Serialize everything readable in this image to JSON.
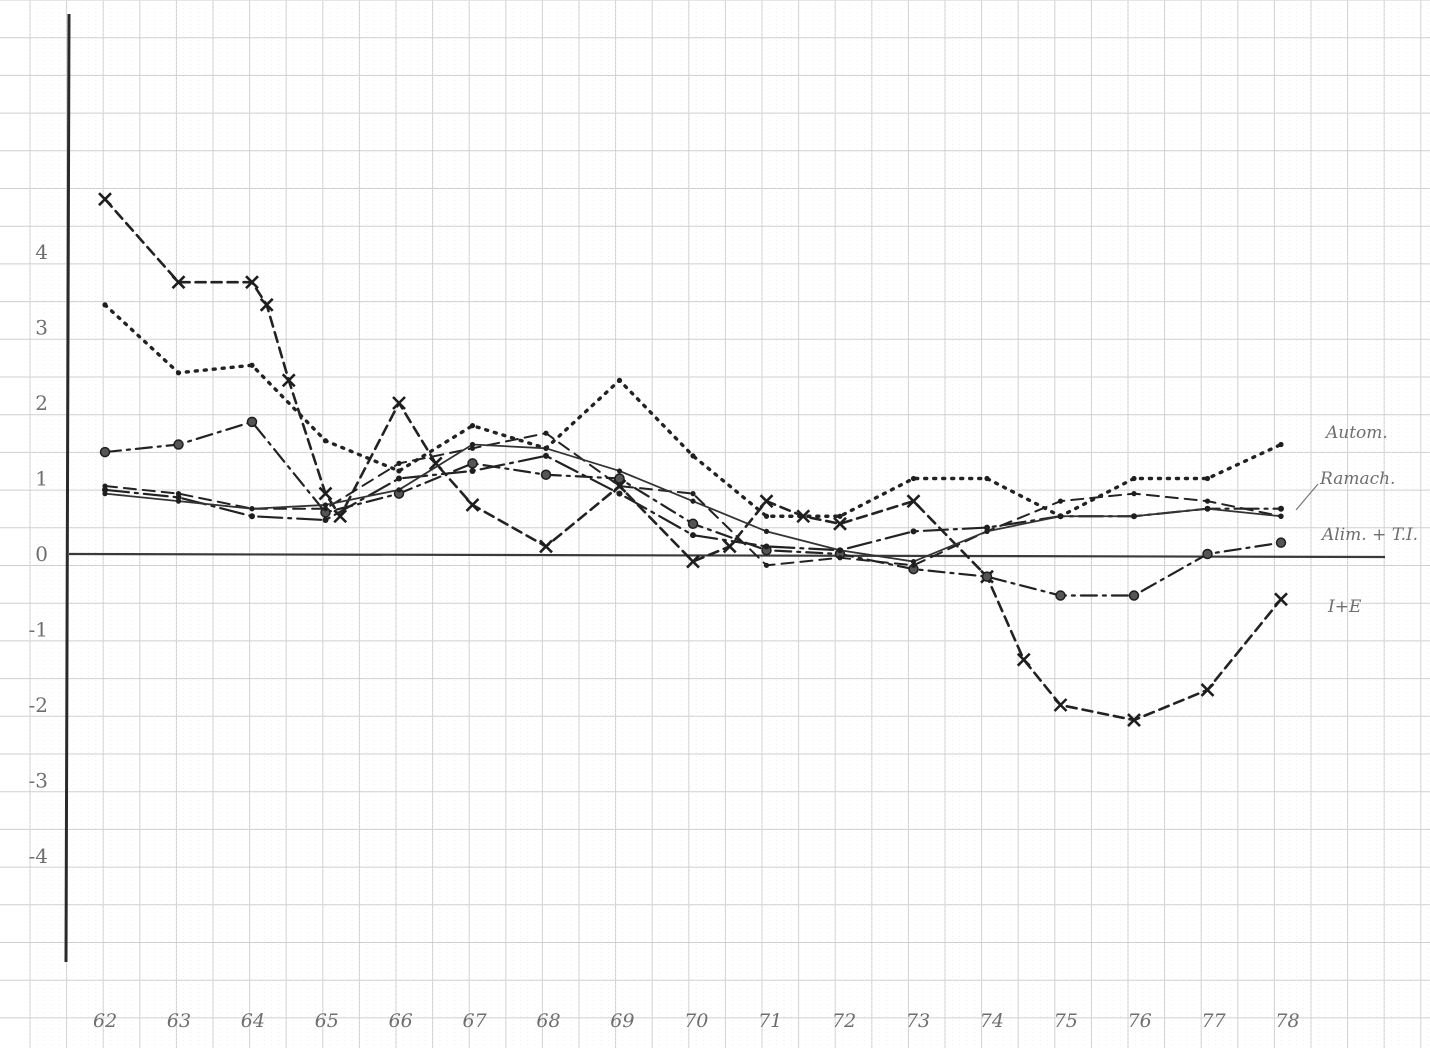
{
  "chart_data": {
    "type": "line",
    "title": "",
    "xlabel": "",
    "ylabel": "",
    "categories": [
      "62",
      "63",
      "64",
      "65",
      "66",
      "67",
      "68",
      "69",
      "70",
      "71",
      "72",
      "73",
      "74",
      "75",
      "76",
      "77",
      "78"
    ],
    "ylim": [
      -5.4,
      7.2
    ],
    "yticks": [
      {
        "value": 4,
        "label": "4"
      },
      {
        "value": 3,
        "label": "3"
      },
      {
        "value": 2,
        "label": "2"
      },
      {
        "value": 1,
        "label": "1"
      },
      {
        "value": 0,
        "label": "0"
      },
      {
        "value": -1,
        "label": "-1"
      },
      {
        "value": -2,
        "label": "-2"
      },
      {
        "value": -3,
        "label": "-3"
      },
      {
        "value": -4,
        "label": "-4"
      }
    ],
    "grid": true,
    "series": [
      {
        "name": "Autom.",
        "style": "dotted",
        "color": "#222222",
        "points": [
          [
            62,
            3.3
          ],
          [
            63,
            2.4
          ],
          [
            64,
            2.5
          ],
          [
            65,
            1.5
          ],
          [
            66,
            1.1
          ],
          [
            67,
            1.7
          ],
          [
            68,
            1.4
          ],
          [
            69,
            2.3
          ],
          [
            70,
            1.3
          ],
          [
            71,
            0.5
          ],
          [
            72,
            0.5
          ],
          [
            73,
            1.0
          ],
          [
            74,
            1.0
          ],
          [
            75,
            0.5
          ],
          [
            76,
            1.0
          ],
          [
            77,
            1.0
          ],
          [
            78,
            1.45
          ]
        ]
      },
      {
        "name": "I+E",
        "style": "cross",
        "color": "#222222",
        "points": [
          [
            62,
            4.7
          ],
          [
            63,
            3.6
          ],
          [
            64,
            3.6
          ],
          [
            64.2,
            3.3
          ],
          [
            64.5,
            2.3
          ],
          [
            65,
            0.8
          ],
          [
            65.2,
            0.5
          ],
          [
            66,
            2.0
          ],
          [
            66.5,
            1.2
          ],
          [
            67,
            0.65
          ],
          [
            68,
            0.1
          ],
          [
            69,
            0.9
          ],
          [
            70,
            -0.1
          ],
          [
            70.5,
            0.1
          ],
          [
            71,
            0.7
          ],
          [
            71.5,
            0.5
          ],
          [
            72,
            0.4
          ],
          [
            73,
            0.7
          ],
          [
            74,
            -0.3
          ],
          [
            74.5,
            -1.4
          ],
          [
            75,
            -2.0
          ],
          [
            76,
            -2.2
          ],
          [
            77,
            -1.8
          ],
          [
            78,
            -0.6
          ]
        ]
      },
      {
        "name": "Alim. + T.I.",
        "style": "dashdot-circle",
        "color": "#222222",
        "points": [
          [
            62,
            1.35
          ],
          [
            63,
            1.45
          ],
          [
            64,
            1.75
          ],
          [
            65,
            0.55
          ],
          [
            66,
            0.8
          ],
          [
            67,
            1.2
          ],
          [
            68,
            1.05
          ],
          [
            69,
            1.0
          ],
          [
            70,
            0.4
          ],
          [
            71,
            0.05
          ],
          [
            72,
            0.0
          ],
          [
            73,
            -0.2
          ],
          [
            74,
            -0.3
          ],
          [
            75,
            -0.55
          ],
          [
            76,
            -0.55
          ],
          [
            77,
            0.0
          ],
          [
            78,
            0.15
          ]
        ]
      },
      {
        "name": "Ramach.",
        "style": "dashed",
        "color": "#222222",
        "points": [
          [
            62,
            0.9
          ],
          [
            63,
            0.8
          ],
          [
            64,
            0.6
          ],
          [
            65,
            0.6
          ],
          [
            66,
            1.2
          ],
          [
            67,
            1.4
          ],
          [
            68,
            1.6
          ],
          [
            69,
            0.9
          ],
          [
            70,
            0.8
          ],
          [
            71,
            -0.15
          ],
          [
            72,
            -0.05
          ],
          [
            73,
            -0.15
          ],
          [
            74,
            0.3
          ],
          [
            75,
            0.7
          ],
          [
            76,
            0.8
          ],
          [
            77,
            0.7
          ],
          [
            78,
            0.5
          ]
        ]
      },
      {
        "name": "",
        "style": "longdash-dot",
        "color": "#222222",
        "points": [
          [
            62,
            0.85
          ],
          [
            63,
            0.75
          ],
          [
            64,
            0.5
          ],
          [
            65,
            0.45
          ],
          [
            66,
            1.0
          ],
          [
            67,
            1.1
          ],
          [
            68,
            1.3
          ],
          [
            69,
            0.8
          ],
          [
            70,
            0.25
          ],
          [
            71,
            0.1
          ],
          [
            72,
            0.05
          ],
          [
            73,
            0.3
          ],
          [
            74,
            0.35
          ],
          [
            75,
            0.5
          ],
          [
            76,
            0.5
          ],
          [
            77,
            0.6
          ],
          [
            78,
            0.6
          ]
        ]
      },
      {
        "name": "",
        "style": "solid",
        "color": "#333333",
        "points": [
          [
            62,
            0.8
          ],
          [
            63,
            0.7
          ],
          [
            64,
            0.6
          ],
          [
            65,
            0.65
          ],
          [
            66,
            0.85
          ],
          [
            67,
            1.45
          ],
          [
            68,
            1.4
          ],
          [
            69,
            1.1
          ],
          [
            70,
            0.7
          ],
          [
            71,
            0.3
          ],
          [
            72,
            0.05
          ],
          [
            73,
            -0.1
          ],
          [
            74,
            0.3
          ],
          [
            75,
            0.5
          ],
          [
            76,
            0.5
          ],
          [
            77,
            0.6
          ],
          [
            78,
            0.5
          ]
        ]
      }
    ],
    "series_labels": [
      {
        "series": "Autom.",
        "text": "Autom."
      },
      {
        "series": "Ramach.",
        "text": "Ramach."
      },
      {
        "series": "Alim. + T.I.",
        "text": "Alim. + T.I."
      },
      {
        "series": "I+E",
        "text": "I+E"
      }
    ]
  }
}
